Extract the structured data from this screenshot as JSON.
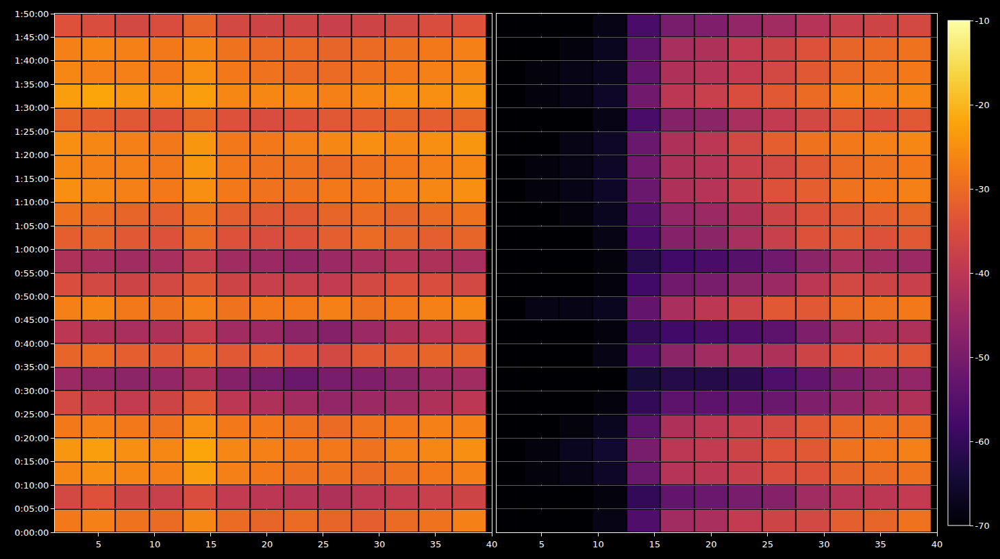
{
  "chart_data": [
    {
      "type": "heatmap",
      "x": [
        2,
        5,
        8,
        11,
        14,
        17,
        20,
        23,
        26,
        29,
        32,
        35,
        38
      ],
      "y": [
        150,
        450,
        750,
        1050,
        1350,
        1650,
        1950,
        2250,
        2550,
        2850,
        3150,
        3450,
        3750,
        4050,
        4350,
        4650,
        4950,
        5250,
        5550,
        5850,
        6150,
        6450
      ],
      "cells": [
        [
          -28,
          -27,
          -29,
          -30,
          -26,
          -30,
          -31,
          -30,
          -31,
          -32,
          -30,
          -29,
          -27
        ],
        [
          -36,
          -34,
          -37,
          -38,
          -35,
          -39,
          -40,
          -41,
          -42,
          -40,
          -39,
          -38,
          -37
        ],
        [
          -26,
          -25,
          -26,
          -27,
          -23,
          -27,
          -28,
          -29,
          -29,
          -30,
          -29,
          -28,
          -27
        ],
        [
          -24,
          -23,
          -25,
          -26,
          -22,
          -26,
          -27,
          -28,
          -28,
          -29,
          -27,
          -26,
          -25
        ],
        [
          -28,
          -27,
          -28,
          -29,
          -25,
          -28,
          -28,
          -29,
          -30,
          -29,
          -28,
          -27,
          -27
        ],
        [
          -36,
          -38,
          -39,
          -37,
          -33,
          -40,
          -42,
          -44,
          -46,
          -45,
          -44,
          -42,
          -40
        ],
        [
          -45,
          -46,
          -47,
          -46,
          -42,
          -48,
          -50,
          -52,
          -50,
          -49,
          -47,
          -45,
          -44
        ],
        [
          -31,
          -30,
          -32,
          -33,
          -30,
          -33,
          -32,
          -34,
          -36,
          -33,
          -32,
          -31,
          -31
        ],
        [
          -40,
          -42,
          -43,
          -42,
          -38,
          -44,
          -45,
          -47,
          -48,
          -45,
          -42,
          -41,
          -40
        ],
        [
          -27,
          -26,
          -28,
          -29,
          -27,
          -29,
          -28,
          -28,
          -27,
          -29,
          -28,
          -27,
          -26
        ],
        [
          -35,
          -36,
          -37,
          -36,
          -33,
          -37,
          -38,
          -38,
          -39,
          -36,
          -34,
          -35,
          -36
        ],
        [
          -42,
          -43,
          -44,
          -43,
          -38,
          -44,
          -45,
          -46,
          -45,
          -43,
          -41,
          -42,
          -43
        ],
        [
          -32,
          -31,
          -33,
          -34,
          -30,
          -34,
          -35,
          -34,
          -32,
          -30,
          -31,
          -32,
          -31
        ],
        [
          -29,
          -30,
          -31,
          -32,
          -29,
          -32,
          -33,
          -33,
          -31,
          -30,
          -31,
          -30,
          -29
        ],
        [
          -25,
          -26,
          -27,
          -28,
          -25,
          -28,
          -29,
          -29,
          -28,
          -28,
          -27,
          -26,
          -25
        ],
        [
          -26,
          -27,
          -27,
          -28,
          -24,
          -28,
          -29,
          -29,
          -30,
          -29,
          -28,
          -27,
          -26
        ],
        [
          -25,
          -26,
          -27,
          -28,
          -24,
          -28,
          -28,
          -27,
          -26,
          -25,
          -26,
          -25,
          -24
        ],
        [
          -31,
          -32,
          -33,
          -34,
          -31,
          -34,
          -35,
          -34,
          -33,
          -32,
          -31,
          -32,
          -31
        ],
        [
          -23,
          -22,
          -24,
          -25,
          -23,
          -26,
          -26,
          -26,
          -27,
          -26,
          -25,
          -25,
          -24
        ],
        [
          -26,
          -27,
          -27,
          -28,
          -25,
          -28,
          -29,
          -30,
          -30,
          -29,
          -28,
          -27,
          -26
        ],
        [
          -27,
          -26,
          -27,
          -28,
          -26,
          -29,
          -30,
          -30,
          -31,
          -30,
          -29,
          -28,
          -27
        ],
        [
          -34,
          -35,
          -36,
          -35,
          -31,
          -36,
          -37,
          -37,
          -38,
          -37,
          -36,
          -35,
          -34
        ]
      ],
      "xlim": [
        1.1,
        40
      ],
      "xticks": [
        5,
        10,
        15,
        20,
        25,
        30,
        35,
        40
      ],
      "ylim": [
        0,
        6600
      ],
      "yticks": [
        {
          "value": 0,
          "label": "0:00:00"
        },
        {
          "value": 300,
          "label": "0:05:00"
        },
        {
          "value": 600,
          "label": "0:10:00"
        },
        {
          "value": 900,
          "label": "0:15:00"
        },
        {
          "value": 1200,
          "label": "0:20:00"
        },
        {
          "value": 1500,
          "label": "0:25:00"
        },
        {
          "value": 1800,
          "label": "0:30:00"
        },
        {
          "value": 2100,
          "label": "0:35:00"
        },
        {
          "value": 2400,
          "label": "0:40:00"
        },
        {
          "value": 2700,
          "label": "0:45:00"
        },
        {
          "value": 3000,
          "label": "0:50:00"
        },
        {
          "value": 3300,
          "label": "0:55:00"
        },
        {
          "value": 3600,
          "label": "1:00:00"
        },
        {
          "value": 3900,
          "label": "1:05:00"
        },
        {
          "value": 4200,
          "label": "1:10:00"
        },
        {
          "value": 4500,
          "label": "1:15:00"
        },
        {
          "value": 4800,
          "label": "1:20:00"
        },
        {
          "value": 5100,
          "label": "1:25:00"
        },
        {
          "value": 5400,
          "label": "1:30:00"
        },
        {
          "value": 5700,
          "label": "1:35:00"
        },
        {
          "value": 6000,
          "label": "1:40:00"
        },
        {
          "value": 6300,
          "label": "1:45:00"
        },
        {
          "value": 6600,
          "label": "1:50:00"
        }
      ],
      "zlim": [
        -70,
        -10
      ],
      "zticks": [
        -70,
        -60,
        -50,
        -40,
        -30,
        -20,
        -10
      ],
      "grid": true
    },
    {
      "type": "heatmap",
      "x": [
        2,
        5,
        8,
        11,
        14,
        17,
        20,
        23,
        26,
        29,
        32,
        35,
        38
      ],
      "y": [
        150,
        450,
        750,
        1050,
        1350,
        1650,
        1950,
        2250,
        2550,
        2850,
        3150,
        3450,
        3750,
        4050,
        4350,
        4650,
        4950,
        5250,
        5550,
        5850,
        6150,
        6450
      ],
      "cells": [
        [
          -70,
          -70,
          -70,
          -68,
          -56,
          -44,
          -43,
          -39,
          -37,
          -36,
          -32,
          -31,
          -29
        ],
        [
          -70,
          -70,
          -70,
          -69,
          -60,
          -53,
          -52,
          -50,
          -48,
          -44,
          -41,
          -40,
          -39
        ],
        [
          -70,
          -69,
          -68,
          -66,
          -52,
          -41,
          -40,
          -38,
          -35,
          -34,
          -31,
          -30,
          -29
        ],
        [
          -70,
          -69,
          -67,
          -65,
          -50,
          -40,
          -39,
          -37,
          -34,
          -33,
          -29,
          -28,
          -27
        ],
        [
          -70,
          -70,
          -69,
          -67,
          -54,
          -42,
          -40,
          -38,
          -36,
          -33,
          -30,
          -29,
          -29
        ],
        [
          -70,
          -70,
          -70,
          -69,
          -60,
          -54,
          -54,
          -53,
          -52,
          -49,
          -46,
          -44,
          -42
        ],
        [
          -70,
          -70,
          -70,
          -70,
          -64,
          -62,
          -62,
          -61,
          -56,
          -53,
          -49,
          -47,
          -46
        ],
        [
          -70,
          -70,
          -70,
          -68,
          -56,
          -47,
          -44,
          -43,
          -42,
          -37,
          -34,
          -33,
          -33
        ],
        [
          -70,
          -70,
          -70,
          -69,
          -60,
          -58,
          -57,
          -56,
          -54,
          -49,
          -44,
          -43,
          -42
        ],
        [
          -70,
          -68,
          -68,
          -67,
          -53,
          -43,
          -40,
          -37,
          -33,
          -33,
          -30,
          -29,
          -28
        ],
        [
          -70,
          -70,
          -70,
          -69,
          -58,
          -51,
          -50,
          -47,
          -45,
          -40,
          -36,
          -37,
          -38
        ],
        [
          -70,
          -70,
          -70,
          -69,
          -62,
          -58,
          -57,
          -55,
          -51,
          -47,
          -43,
          -44,
          -45
        ],
        [
          -70,
          -70,
          -70,
          -68,
          -57,
          -48,
          -47,
          -43,
          -38,
          -34,
          -33,
          -34,
          -33
        ],
        [
          -70,
          -70,
          -69,
          -67,
          -55,
          -46,
          -45,
          -42,
          -37,
          -34,
          -33,
          -32,
          -31
        ],
        [
          -70,
          -69,
          -68,
          -66,
          -52,
          -42,
          -41,
          -38,
          -34,
          -32,
          -29,
          -28,
          -27
        ],
        [
          -70,
          -69,
          -68,
          -66,
          -51,
          -42,
          -41,
          -38,
          -36,
          -33,
          -30,
          -29,
          -28
        ],
        [
          -70,
          -70,
          -68,
          -66,
          -52,
          -42,
          -40,
          -36,
          -32,
          -29,
          -28,
          -27,
          -26
        ],
        [
          -70,
          -70,
          -70,
          -68,
          -57,
          -48,
          -47,
          -43,
          -39,
          -36,
          -33,
          -34,
          -33
        ],
        [
          -70,
          -69,
          -68,
          -66,
          -51,
          -40,
          -38,
          -35,
          -33,
          -30,
          -27,
          -27,
          -26
        ],
        [
          -70,
          -69,
          -68,
          -67,
          -53,
          -42,
          -41,
          -39,
          -36,
          -33,
          -30,
          -29,
          -28
        ],
        [
          -70,
          -70,
          -69,
          -67,
          -54,
          -43,
          -42,
          -39,
          -37,
          -34,
          -31,
          -30,
          -29
        ],
        [
          -70,
          -70,
          -70,
          -68,
          -57,
          -50,
          -49,
          -46,
          -44,
          -41,
          -38,
          -37,
          -36
        ]
      ],
      "xlim": [
        1,
        40
      ],
      "xticks": [
        5,
        10,
        15,
        20,
        25,
        30,
        35,
        40
      ],
      "ylim": [
        0,
        6600
      ],
      "yticks": [
        {
          "value": 0,
          "label": "0:00:00"
        },
        {
          "value": 300,
          "label": "0:05:00"
        },
        {
          "value": 600,
          "label": "0:10:00"
        },
        {
          "value": 900,
          "label": "0:15:00"
        },
        {
          "value": 1200,
          "label": "0:20:00"
        },
        {
          "value": 1500,
          "label": "0:25:00"
        },
        {
          "value": 1800,
          "label": "0:30:00"
        },
        {
          "value": 2100,
          "label": "0:35:00"
        },
        {
          "value": 2400,
          "label": "0:40:00"
        },
        {
          "value": 2700,
          "label": "0:45:00"
        },
        {
          "value": 3000,
          "label": "0:50:00"
        },
        {
          "value": 3300,
          "label": "0:55:00"
        },
        {
          "value": 3600,
          "label": "1:00:00"
        },
        {
          "value": 3900,
          "label": "1:05:00"
        },
        {
          "value": 4200,
          "label": "1:10:00"
        },
        {
          "value": 4500,
          "label": "1:15:00"
        },
        {
          "value": 4800,
          "label": "1:20:00"
        },
        {
          "value": 5100,
          "label": "1:25:00"
        },
        {
          "value": 5400,
          "label": "1:30:00"
        },
        {
          "value": 5700,
          "label": "1:35:00"
        },
        {
          "value": 6000,
          "label": "1:40:00"
        },
        {
          "value": 6300,
          "label": "1:45:00"
        },
        {
          "value": 6600,
          "label": "1:50:00"
        }
      ],
      "zlim": [
        -70,
        -10
      ],
      "zticks": [
        -70,
        -60,
        -50,
        -40,
        -30,
        -20,
        -10
      ],
      "grid": true,
      "tick_labels": "x"
    }
  ]
}
